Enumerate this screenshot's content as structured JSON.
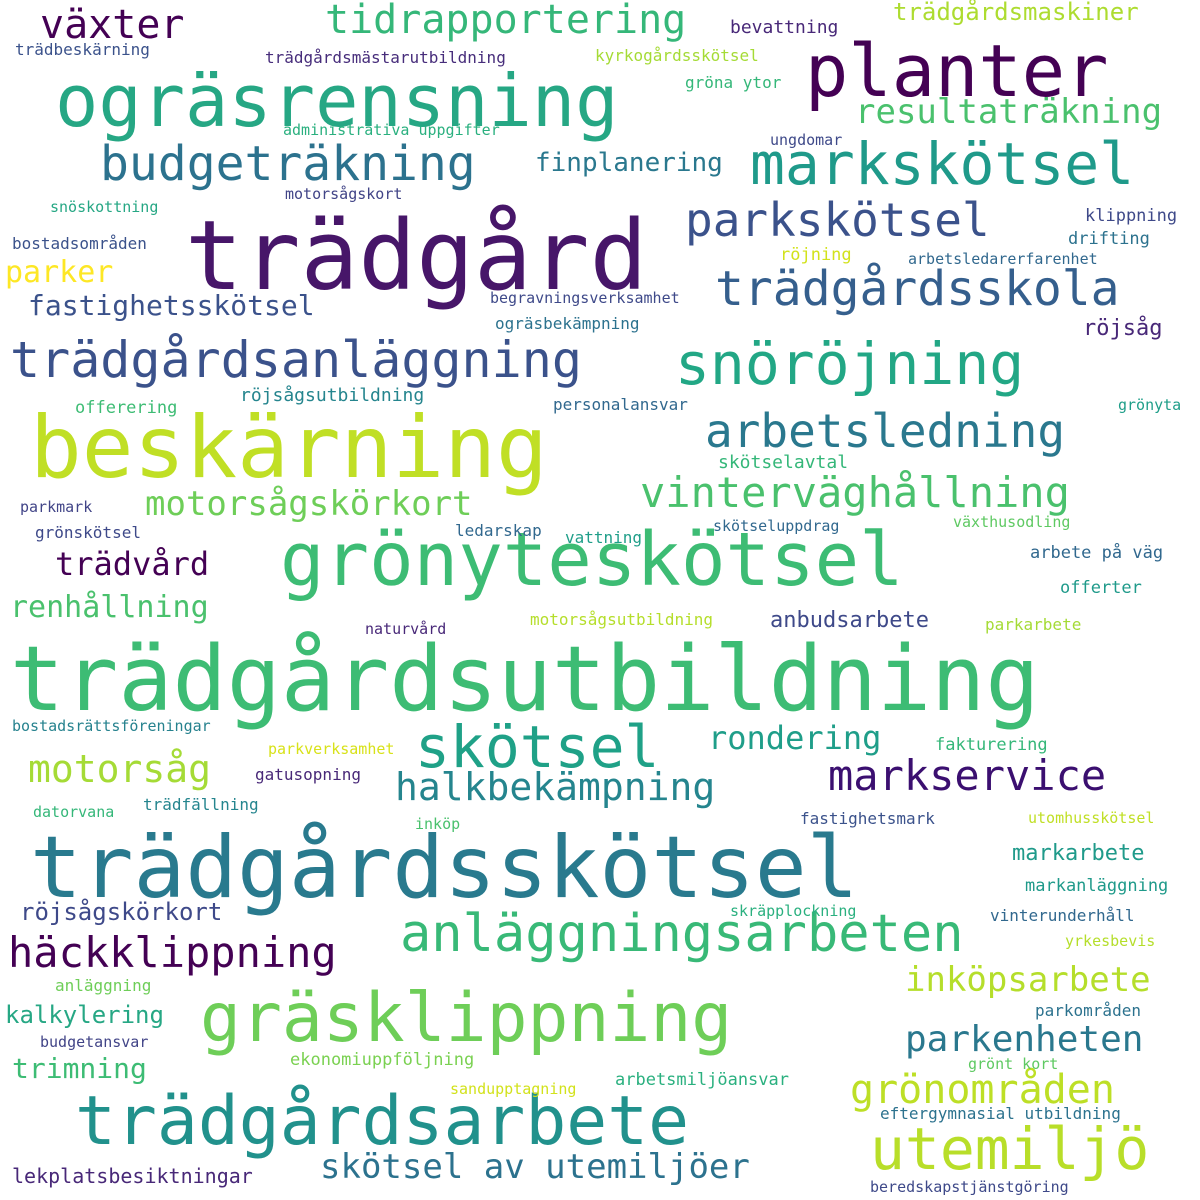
{
  "words": [
    {
      "text": "trädgårdsutbildning",
      "color": "#3dbc74"
    },
    {
      "text": "trädgårdsskötsel",
      "color": "#297a8e"
    },
    {
      "text": "trädgård",
      "color": "#471669"
    },
    {
      "text": "grönyteskötsel",
      "color": "#3dbc74"
    },
    {
      "text": "beskärning",
      "color": "#c0df25"
    },
    {
      "text": "ogräsrensning",
      "color": "#26a784"
    },
    {
      "text": "trädgårdsarbete",
      "color": "#21918c"
    },
    {
      "text": "gräsklippning",
      "color": "#6ece58"
    },
    {
      "text": "planter",
      "color": "#440154"
    },
    {
      "text": "markskötsel",
      "color": "#1f9a8a"
    },
    {
      "text": "snöröjning",
      "color": "#22a785"
    },
    {
      "text": "trädgårdsanläggning",
      "color": "#3b528b"
    },
    {
      "text": "anläggningsarbeten",
      "color": "#38b977"
    },
    {
      "text": "skötsel",
      "color": "#1fa187"
    },
    {
      "text": "utemiljö",
      "color": "#b8de29"
    },
    {
      "text": "budgeträkning",
      "color": "#2c728e"
    },
    {
      "text": "parkskötsel",
      "color": "#3b528b"
    },
    {
      "text": "trädgårdsskola",
      "color": "#355f8d"
    },
    {
      "text": "arbetsledning",
      "color": "#2a788e"
    },
    {
      "text": "vinterväghållning",
      "color": "#4ac16d"
    },
    {
      "text": "markservice",
      "color": "#3b0f70"
    },
    {
      "text": "häckklippning",
      "color": "#440154"
    },
    {
      "text": "växter",
      "color": "#440154"
    },
    {
      "text": "tidrapportering",
      "color": "#35b779"
    },
    {
      "text": "motorsågskörkort",
      "color": "#6ece58"
    },
    {
      "text": "halkbekämpning",
      "color": "#25858e"
    },
    {
      "text": "skötsel av utemiljöer",
      "color": "#2c728e"
    },
    {
      "text": "grönområden",
      "color": "#bddf26"
    },
    {
      "text": "motorsåg",
      "color": "#a5db36"
    },
    {
      "text": "parkenheten",
      "color": "#2a788e"
    },
    {
      "text": "inköpsarbete",
      "color": "#b5de2b"
    },
    {
      "text": "resultaträkning",
      "color": "#4ac16d"
    },
    {
      "text": "fastighetsskötsel",
      "color": "#3b528b"
    },
    {
      "text": "parker",
      "color": "#fde725"
    },
    {
      "text": "renhållning",
      "color": "#4ac16d"
    },
    {
      "text": "trädvård",
      "color": "#440154"
    },
    {
      "text": "rondering",
      "color": "#1f9e89"
    },
    {
      "text": "finplanering",
      "color": "#2a788e"
    },
    {
      "text": "trädgårdsmaskiner",
      "color": "#addc30"
    },
    {
      "text": "röjsågskörkort",
      "color": "#3e4989"
    },
    {
      "text": "kalkylering",
      "color": "#26a784"
    },
    {
      "text": "trimning",
      "color": "#3dbc74"
    },
    {
      "text": "lekplatsbesiktningar",
      "color": "#482878"
    },
    {
      "text": "markarbete",
      "color": "#1f9a8a"
    },
    {
      "text": "anbudsarbete",
      "color": "#3e4989"
    },
    {
      "text": "skötselavtal",
      "color": "#35b779"
    },
    {
      "text": "röjsåg",
      "color": "#482878"
    },
    {
      "text": "bevattning",
      "color": "#482878"
    },
    {
      "text": "trädbeskärning",
      "color": "#3b528b"
    },
    {
      "text": "trädgårdsmästarutbildning",
      "color": "#472d7b"
    },
    {
      "text": "kyrkogårdsskötsel",
      "color": "#a5db36"
    },
    {
      "text": "gröna ytor",
      "color": "#35b779"
    },
    {
      "text": "administrativa uppgifter",
      "color": "#2ab07f"
    },
    {
      "text": "ungdomar",
      "color": "#3e4989"
    },
    {
      "text": "motorsågskort",
      "color": "#414487"
    },
    {
      "text": "snöskottning",
      "color": "#26a784"
    },
    {
      "text": "klippning",
      "color": "#3e4989"
    },
    {
      "text": "bostadsområden",
      "color": "#3b528b"
    },
    {
      "text": "drifting",
      "color": "#2c728e"
    },
    {
      "text": "röjning",
      "color": "#d2e21b"
    },
    {
      "text": "arbetsledarerfarenhet",
      "color": "#31688e"
    },
    {
      "text": "begravningsverksamhet",
      "color": "#3e4989"
    },
    {
      "text": "ogräsbekämpning",
      "color": "#2c728e"
    },
    {
      "text": "röjsågsutbildning",
      "color": "#25858e"
    },
    {
      "text": "offerering",
      "color": "#3dbc74"
    },
    {
      "text": "personalansvar",
      "color": "#31688e"
    },
    {
      "text": "grönyta",
      "color": "#1f9e89"
    },
    {
      "text": "parkmark",
      "color": "#414487"
    },
    {
      "text": "grönskötsel",
      "color": "#3e4989"
    },
    {
      "text": "ledarskap",
      "color": "#31688e"
    },
    {
      "text": "vattning",
      "color": "#1f9e89"
    },
    {
      "text": "skötseluppdrag",
      "color": "#31688e"
    },
    {
      "text": "växthusodling",
      "color": "#5ec962"
    },
    {
      "text": "arbete på väg",
      "color": "#31688e"
    },
    {
      "text": "offerter",
      "color": "#1f9a8a"
    },
    {
      "text": "naturvård",
      "color": "#482878"
    },
    {
      "text": "motorsågsutbildning",
      "color": "#b5de2b"
    },
    {
      "text": "parkarbete",
      "color": "#a5db36"
    },
    {
      "text": "bostadsrättsföreningar",
      "color": "#26828e"
    },
    {
      "text": "parkverksamhet",
      "color": "#d8e219"
    },
    {
      "text": "gatusopning",
      "color": "#482878"
    },
    {
      "text": "fakturering",
      "color": "#35b779"
    },
    {
      "text": "trädfällning",
      "color": "#25858e"
    },
    {
      "text": "datorvana",
      "color": "#35b779"
    },
    {
      "text": "inköp",
      "color": "#4ac16d"
    },
    {
      "text": "fastighetsmark",
      "color": "#3b528b"
    },
    {
      "text": "utomhusskötsel",
      "color": "#c0df25"
    },
    {
      "text": "markanläggning",
      "color": "#1f9a8a"
    },
    {
      "text": "skräpplockning",
      "color": "#2ab07f"
    },
    {
      "text": "vinterunderhåll",
      "color": "#31688e"
    },
    {
      "text": "yrkesbevis",
      "color": "#b5de2b"
    },
    {
      "text": "anläggning",
      "color": "#6ece58"
    },
    {
      "text": "parkområden",
      "color": "#2c728e"
    },
    {
      "text": "budgetansvar",
      "color": "#414487"
    },
    {
      "text": "ekonomiuppföljning",
      "color": "#7ad151"
    },
    {
      "text": "grönt kort",
      "color": "#5ec962"
    },
    {
      "text": "arbetsmiljöansvar",
      "color": "#2ab07f"
    },
    {
      "text": "sandupptagning",
      "color": "#d2e21b"
    },
    {
      "text": "eftergymnasial utbildning",
      "color": "#2c728e"
    },
    {
      "text": "beredskapstjänstgöring",
      "color": "#3e4989"
    }
  ]
}
